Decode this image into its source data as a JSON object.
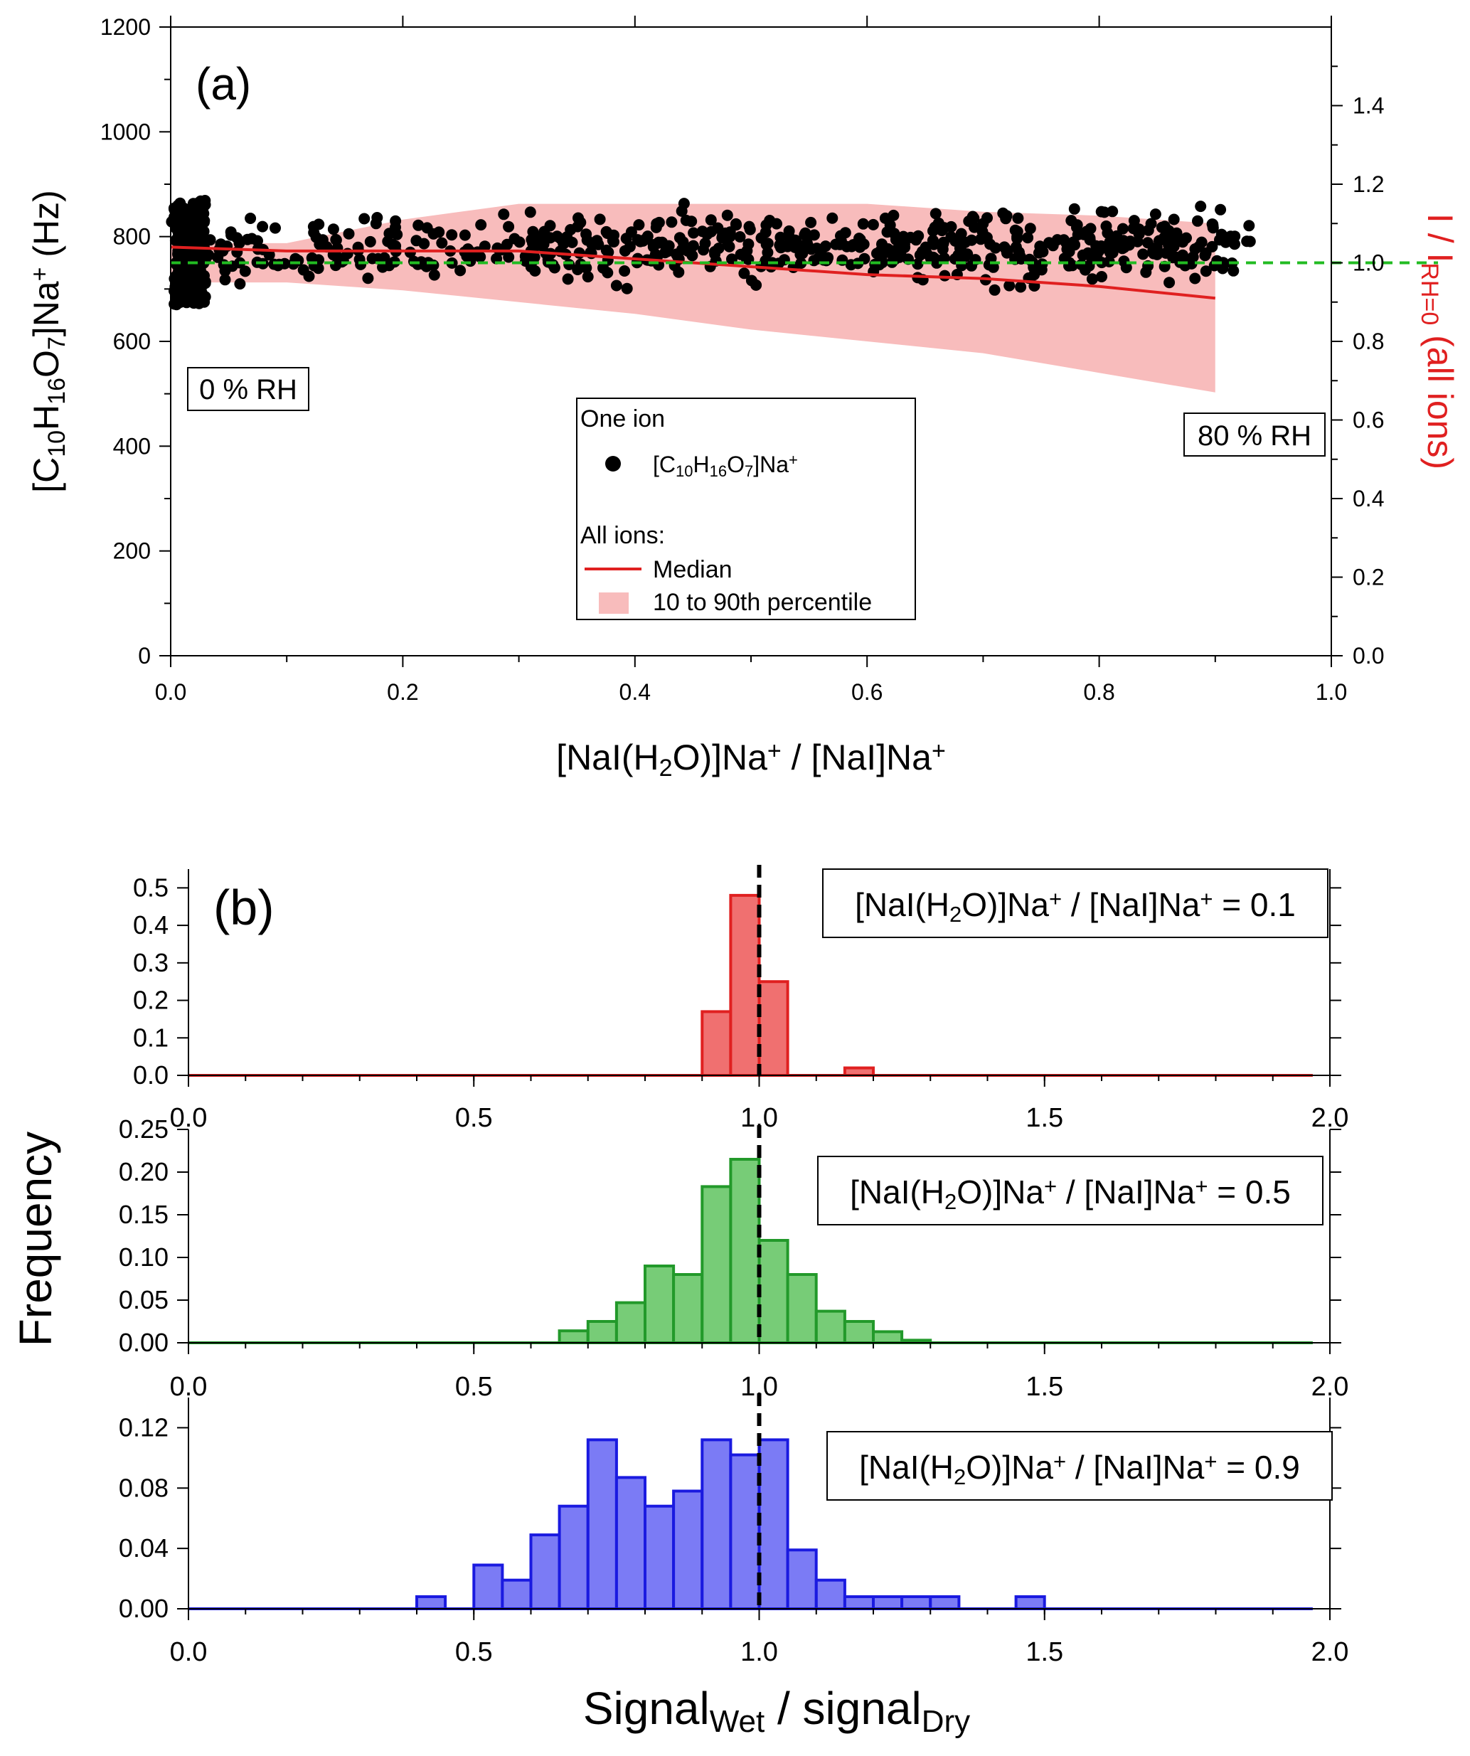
{
  "chart_data": [
    {
      "id": "a",
      "type": "scatter",
      "panel_label": "(a)",
      "xlabel": {
        "main": "[NaI(H",
        "sub": "2",
        "main2": "O)]Na",
        "sup": "+",
        "main3": " / [NaI]Na",
        "sup2": "+"
      },
      "ylabel_left": {
        "p1": "[C",
        "s1": "10",
        "p2": "H",
        "s2": "16",
        "p3": "O",
        "s3": "7",
        "p4": "]Na",
        "sup": "+",
        "p5": " (Hz)"
      },
      "ylabel_right": {
        "p1": "I / I",
        "sub": "RH=0",
        "p2": " (all ions)"
      },
      "xlim": [
        0,
        1.0
      ],
      "ylim": [
        0,
        1200
      ],
      "y2lim": [
        0,
        1.6
      ],
      "xticks": [
        "0.0",
        "0.2",
        "0.4",
        "0.6",
        "0.8",
        "1.0"
      ],
      "yticks": [
        "0",
        "200",
        "400",
        "600",
        "800",
        "1000",
        "1200"
      ],
      "y2ticks": [
        "0.0",
        "0.2",
        "0.4",
        "0.6",
        "0.8",
        "1.0",
        "1.2",
        "1.4"
      ],
      "annotations": {
        "start": "0 % RH",
        "end": "80 % RH"
      },
      "legend": {
        "title_one": "One ion",
        "one_ion": {
          "p1": "[C",
          "s1": "10",
          "p2": "H",
          "s2": "16",
          "p3": "O",
          "s3": "7",
          "p4": "]Na",
          "sup": "+"
        },
        "title_all": "All ions:",
        "median": "Median",
        "band": "10 to 90th percentile"
      },
      "reference_line": {
        "y2": 1.0,
        "color": "#22bb22"
      },
      "median_series": {
        "axis": "right",
        "color": "#e02020",
        "x": [
          0.0,
          0.1,
          0.2,
          0.3,
          0.4,
          0.5,
          0.6,
          0.7,
          0.8,
          0.9
        ],
        "y": [
          1.04,
          1.03,
          1.03,
          1.03,
          1.01,
          0.99,
          0.97,
          0.96,
          0.94,
          0.91
        ]
      },
      "percentile_band": {
        "axis": "right",
        "color": "#f8bcbc",
        "x": [
          0.0,
          0.1,
          0.2,
          0.3,
          0.4,
          0.5,
          0.6,
          0.7,
          0.8,
          0.9
        ],
        "upper": [
          1.05,
          1.05,
          1.11,
          1.15,
          1.15,
          1.15,
          1.15,
          1.13,
          1.12,
          1.1
        ],
        "lower": [
          0.95,
          0.95,
          0.93,
          0.9,
          0.87,
          0.83,
          0.8,
          0.77,
          0.72,
          0.67
        ]
      },
      "scatter": {
        "name": "[C10H16O7]Na+",
        "color": "#000000",
        "seed": 7,
        "x_range": [
          0.0,
          0.93
        ],
        "y_center": 780,
        "dense_cluster": {
          "x_range": [
            0.003,
            0.03
          ],
          "y_range": [
            670,
            870
          ],
          "count": 260
        },
        "spread_points": {
          "count": 620,
          "y_spread": 55
        },
        "count": 880
      }
    },
    {
      "id": "b1",
      "type": "bar",
      "panel_label": "(b)",
      "label": {
        "p1": "[NaI(H",
        "sub": "2",
        "p2": "O)]Na",
        "sup": "+",
        "p3": " / [NaI]Na",
        "sup2": "+",
        "p4": " = 0.1"
      },
      "color": "#f07070",
      "edge": "#e02020",
      "bin_width": 0.05,
      "bin_starts": [
        0.9,
        0.95,
        1.0,
        1.05,
        1.1,
        1.15
      ],
      "values": [
        0.17,
        0.48,
        0.25,
        0.0,
        0.0,
        0.02
      ],
      "xlim": [
        0,
        2.0
      ],
      "ylim": [
        0,
        0.55
      ],
      "yticks": [
        "0.0",
        "0.1",
        "0.2",
        "0.3",
        "0.4",
        "0.5"
      ],
      "xticks": [
        "0.0",
        "0.5",
        "1.0",
        "1.5",
        "2.0"
      ]
    },
    {
      "id": "b2",
      "type": "bar",
      "label": {
        "p1": "[NaI(H",
        "sub": "2",
        "p2": "O)]Na",
        "sup": "+",
        "p3": " / [NaI]Na",
        "sup2": "+",
        "p4": " = 0.5"
      },
      "color": "#77cc77",
      "edge": "#22992a",
      "bin_width": 0.05,
      "bin_starts": [
        0.65,
        0.7,
        0.75,
        0.8,
        0.85,
        0.9,
        0.95,
        1.0,
        1.05,
        1.1,
        1.15,
        1.2,
        1.25
      ],
      "values": [
        0.014,
        0.025,
        0.047,
        0.09,
        0.08,
        0.183,
        0.215,
        0.12,
        0.08,
        0.037,
        0.025,
        0.013,
        0.003
      ],
      "xlim": [
        0,
        2.0
      ],
      "ylim": [
        0,
        0.25
      ],
      "yticks": [
        "0.00",
        "0.05",
        "0.10",
        "0.15",
        "0.20",
        "0.25"
      ],
      "xticks": [
        "0.0",
        "0.5",
        "1.0",
        "1.5",
        "2.0"
      ]
    },
    {
      "id": "b3",
      "type": "bar",
      "label": {
        "p1": "[NaI(H",
        "sub": "2",
        "p2": "O)]Na",
        "sup": "+",
        "p3": " / [NaI]Na",
        "sup2": "+",
        "p4": " = 0.9"
      },
      "color": "#7b7bf5",
      "edge": "#1a1ae0",
      "bin_width": 0.05,
      "bin_starts": [
        0.4,
        0.45,
        0.5,
        0.55,
        0.6,
        0.65,
        0.7,
        0.75,
        0.8,
        0.85,
        0.9,
        0.95,
        1.0,
        1.05,
        1.1,
        1.15,
        1.2,
        1.25,
        1.3,
        1.35,
        1.4,
        1.45
      ],
      "values": [
        0.008,
        0.0,
        0.029,
        0.019,
        0.049,
        0.068,
        0.112,
        0.087,
        0.068,
        0.078,
        0.112,
        0.102,
        0.112,
        0.039,
        0.019,
        0.008,
        0.008,
        0.008,
        0.008,
        0.0,
        0.0,
        0.008
      ],
      "xlim": [
        0,
        2.0
      ],
      "ylim": [
        0,
        0.14
      ],
      "yticks": [
        "0.00",
        "0.04",
        "0.08",
        "0.12"
      ],
      "xticks": [
        "0.0",
        "0.5",
        "1.0",
        "1.5",
        "2.0"
      ],
      "xlabel": {
        "p1": "Signal",
        "sub": "Wet",
        "p2": " / signal",
        "sub2": "Dry"
      }
    }
  ],
  "shared_ylabel": "Frequency",
  "reference_x": 1.0
}
